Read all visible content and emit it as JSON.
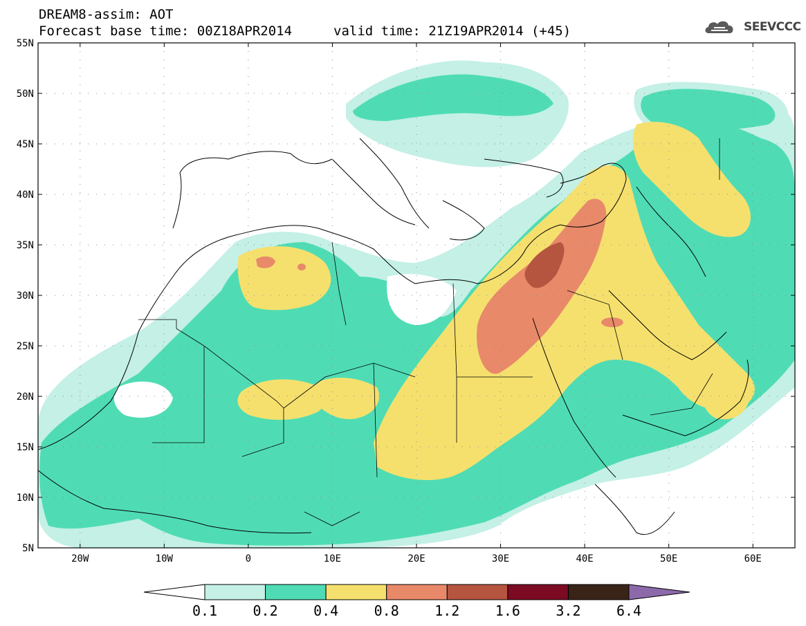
{
  "title": {
    "line1": "DREAM8-assim: AOT",
    "line2": "Forecast base time: 00Z18APR2014",
    "valid": "valid time: 21Z19APR2014 (+45)"
  },
  "logo": {
    "text": "SEEVCCC",
    "icon": "cloud-icon"
  },
  "map": {
    "lat_labels": [
      "55N",
      "50N",
      "45N",
      "40N",
      "35N",
      "30N",
      "25N",
      "20N",
      "15N",
      "10N",
      "5N"
    ],
    "lon_labels": [
      "20W",
      "10W",
      "0",
      "10E",
      "20E",
      "30E",
      "40E",
      "50E",
      "60E"
    ]
  },
  "colorbar": {
    "labels": [
      "0.1",
      "0.2",
      "0.4",
      "0.8",
      "1.2",
      "1.6",
      "3.2",
      "6.4"
    ],
    "colors": [
      "#ffffff",
      "#c4f0e6",
      "#4fdcb4",
      "#f5e06e",
      "#e8896a",
      "#b5553f",
      "#7c0a23",
      "#3a2418",
      "#8c6aaa"
    ]
  },
  "palette": {
    "c01": "#c4f0e6",
    "c02": "#4fdcb4",
    "c04": "#f5e06e",
    "c08": "#e8896a",
    "c12": "#b5553f",
    "coast": "#000000"
  }
}
